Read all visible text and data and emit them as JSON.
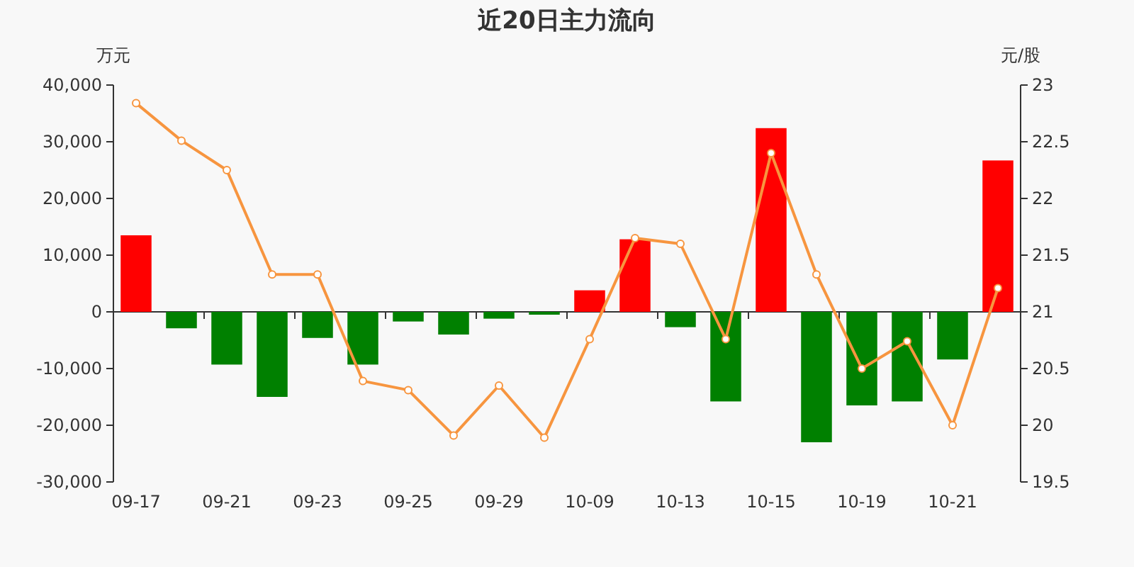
{
  "chart_data": {
    "type": "bar",
    "title": "近20日主力流向",
    "ylabel": "万元",
    "y2label": "元/股",
    "categories": [
      "09-17",
      null,
      "09-21",
      null,
      "09-23",
      null,
      "09-25",
      null,
      "09-29",
      null,
      "10-09",
      null,
      "10-13",
      null,
      "10-15",
      null,
      "10-19",
      null,
      "10-21",
      null
    ],
    "series": [
      {
        "values": [
          13500,
          -2900,
          -9300,
          -15000,
          -4600,
          -9300,
          -1700,
          -4000,
          -1200,
          -500,
          3800,
          12800,
          -2700,
          -15800,
          32400,
          -23000,
          -16500,
          -15800,
          -8400,
          26700
        ],
        "colors": [
          "#ff0000",
          "#008000",
          "#008000",
          "#008000",
          "#008000",
          "#008000",
          "#008000",
          "#008000",
          "#008000",
          "#008000",
          "#ff0000",
          "#ff0000",
          "#008000",
          "#008000",
          "#ff0000",
          "#008000",
          "#008000",
          "#008000",
          "#008000",
          "#ff0000"
        ]
      },
      {
        "type": "line",
        "axis": "y2",
        "color": "#f7953f",
        "marker": "circle",
        "values": [
          22.84,
          22.51,
          22.25,
          21.33,
          21.33,
          20.39,
          20.31,
          19.91,
          20.35,
          19.89,
          20.76,
          21.65,
          21.6,
          20.76,
          22.4,
          21.33,
          20.5,
          20.74,
          20.0,
          21.21
        ]
      }
    ],
    "ylim": [
      -30000,
      40000
    ],
    "yticks": [
      {
        "value": -30000,
        "label": "-30,000"
      },
      {
        "value": -20000,
        "label": "-20,000"
      },
      {
        "value": -10000,
        "label": "-10,000"
      },
      0,
      {
        "value": 10000,
        "label": "10,000"
      },
      {
        "value": 20000,
        "label": "20,000"
      },
      {
        "value": 30000,
        "label": "30,000"
      },
      {
        "value": 40000,
        "label": "40,000"
      }
    ],
    "y2lim": [
      19.5,
      23
    ],
    "y2ticks": [
      19.5,
      20,
      20.5,
      21,
      21.5,
      22,
      22.5,
      23
    ]
  }
}
